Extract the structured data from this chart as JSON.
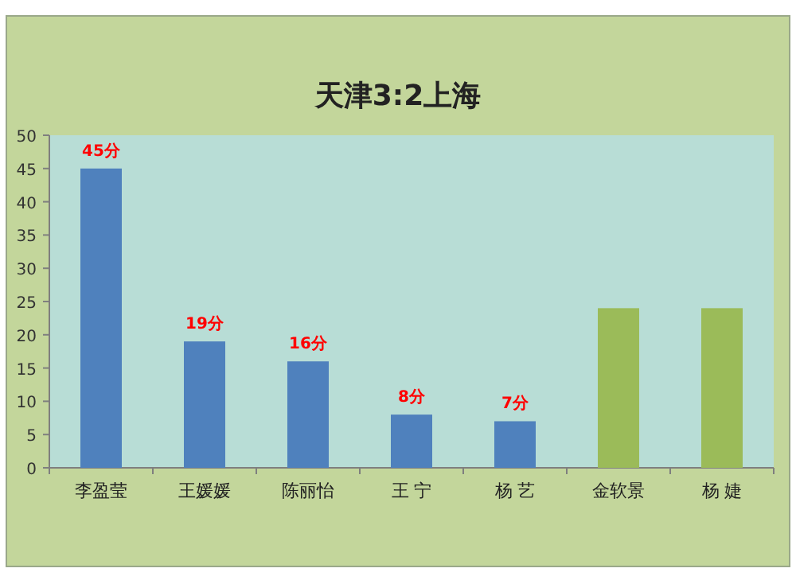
{
  "chart_data": {
    "type": "bar",
    "title": "天津3:2上海",
    "categories": [
      "李盈莹",
      "王媛媛",
      "陈丽怡",
      "王 宁",
      "杨 艺",
      "金软景",
      "杨 婕"
    ],
    "values": [
      45,
      19,
      16,
      8,
      7,
      24,
      24
    ],
    "colors": [
      "#4f81bd",
      "#4f81bd",
      "#4f81bd",
      "#4f81bd",
      "#4f81bd",
      "#9bbb59",
      "#9bbb59"
    ],
    "value_labels": [
      "45分",
      "19分",
      "16分",
      "8分",
      "7分",
      null,
      null
    ],
    "ylim": [
      0,
      50
    ],
    "yticks": [
      0,
      5,
      10,
      15,
      20,
      25,
      30,
      35,
      40,
      45,
      50
    ],
    "grid": false
  }
}
